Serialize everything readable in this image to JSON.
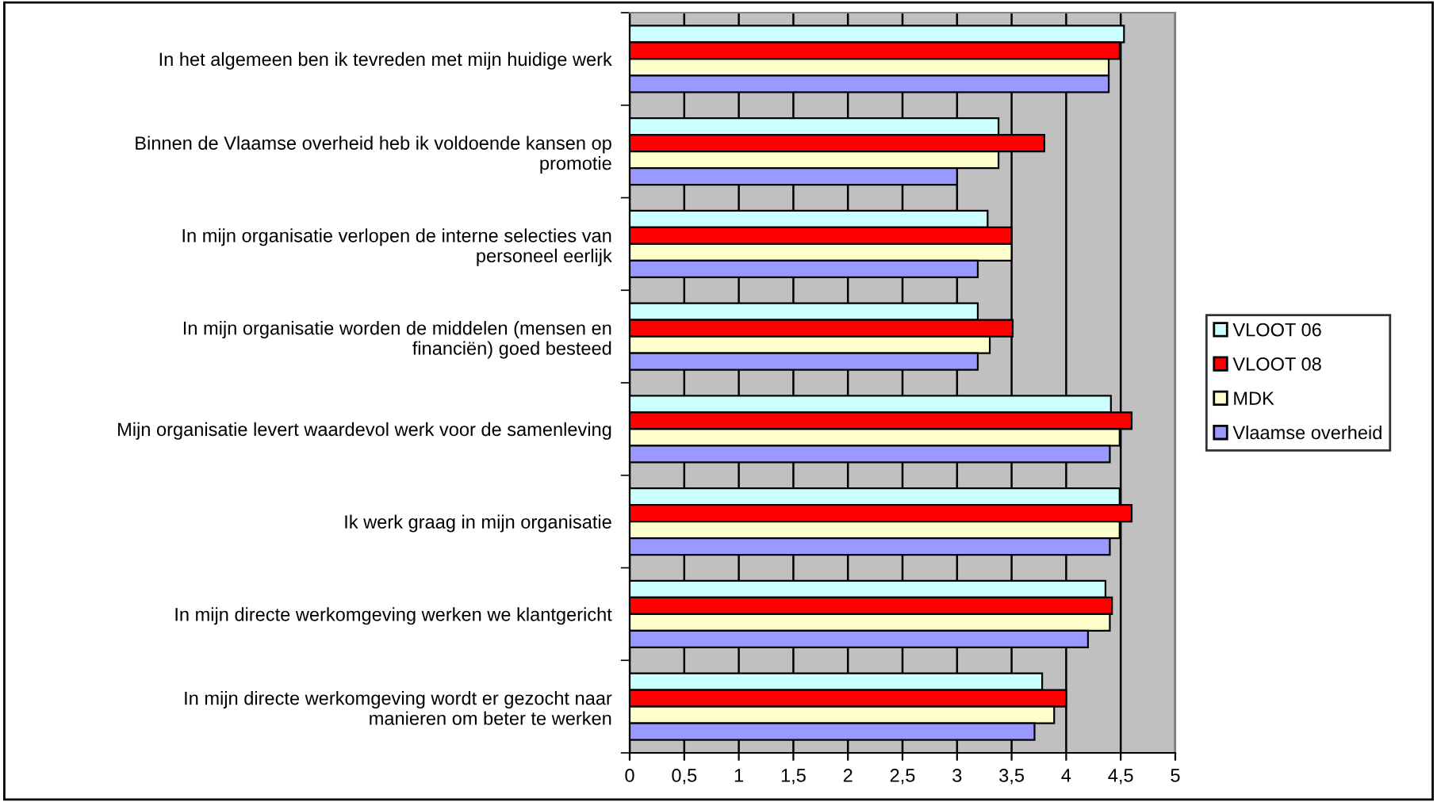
{
  "chart_data": {
    "type": "bar",
    "orientation": "horizontal",
    "categories": [
      "In het algemeen ben ik tevreden met mijn huidige werk",
      "Binnen de Vlaamse overheid heb ik voldoende kansen op\npromotie",
      "In mijn organisatie verlopen de interne selecties van\npersoneel eerlijk",
      "In mijn organisatie worden de middelen (mensen en\nfinanciën) goed besteed",
      "Mijn organisatie levert waardevol werk voor de samenleving",
      "Ik werk graag in mijn organisatie",
      "In mijn directe werkomgeving werken we klantgericht",
      "In mijn directe werkomgeving wordt er gezocht naar\nmanieren om beter te werken"
    ],
    "series": [
      {
        "name": "VLOOT 06",
        "color": "#ccffff",
        "values": [
          4.53,
          3.38,
          3.28,
          3.19,
          4.41,
          4.49,
          4.36,
          3.78
        ]
      },
      {
        "name": "VLOOT 08",
        "color": "#ff0000",
        "values": [
          4.49,
          3.8,
          3.5,
          3.51,
          4.6,
          4.6,
          4.42,
          4.0
        ]
      },
      {
        "name": "MDK",
        "color": "#ffffcc",
        "values": [
          4.39,
          3.38,
          3.5,
          3.3,
          4.49,
          4.49,
          4.4,
          3.89
        ]
      },
      {
        "name": "Vlaamse overheid",
        "color": "#9999ff",
        "values": [
          4.39,
          3.0,
          3.19,
          3.19,
          4.4,
          4.4,
          4.2,
          3.71
        ]
      }
    ],
    "xlim": [
      0,
      5
    ],
    "xticks": [
      0,
      {
        "value": 0.5,
        "label": "0,5"
      },
      1,
      {
        "value": 1.5,
        "label": "1,5"
      },
      2,
      {
        "value": 2.5,
        "label": "2,5"
      },
      3,
      {
        "value": 3.5,
        "label": "3,5"
      },
      4,
      {
        "value": 4.5,
        "label": "4,5"
      },
      5
    ],
    "grid": "x",
    "legend": "right"
  }
}
